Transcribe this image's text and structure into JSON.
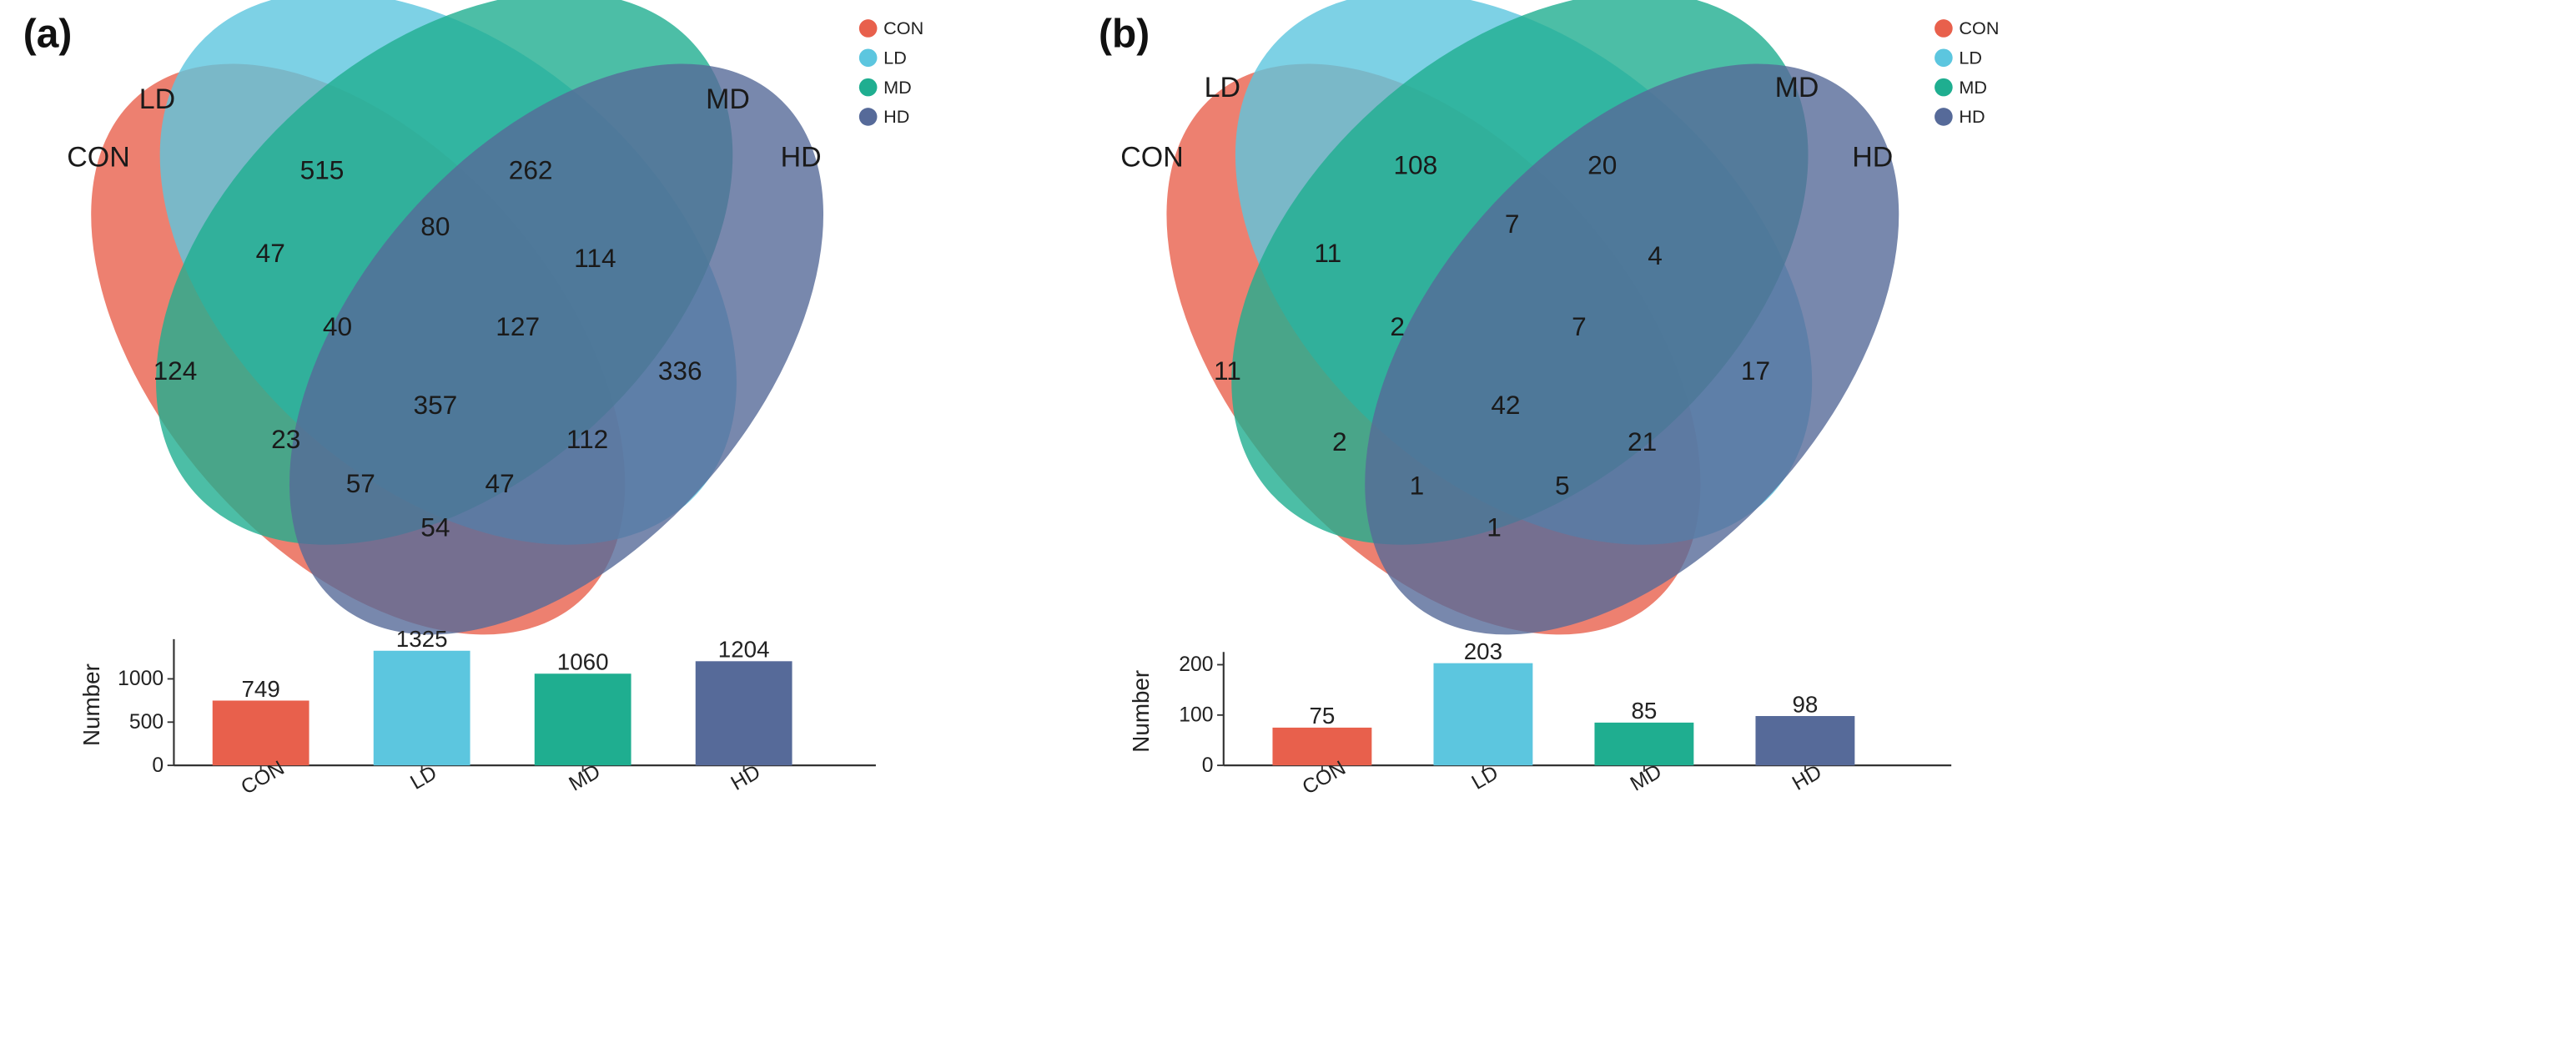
{
  "colors": {
    "CON": "#e8604c",
    "LD": "#5cc6df",
    "MD": "#1fae90",
    "HD": "#566a99"
  },
  "chart_data": [
    {
      "panel": "(a)",
      "type": "venn",
      "sets": [
        "CON",
        "LD",
        "MD",
        "HD"
      ],
      "legend": [
        "CON",
        "LD",
        "MD",
        "HD"
      ],
      "regions": [
        {
          "sets": [
            "LD"
          ],
          "value": 515
        },
        {
          "sets": [
            "MD"
          ],
          "value": 262
        },
        {
          "sets": [
            "CON"
          ],
          "value": 124
        },
        {
          "sets": [
            "HD"
          ],
          "value": 336
        },
        {
          "sets": [
            "CON",
            "LD"
          ],
          "value": 47
        },
        {
          "sets": [
            "LD",
            "MD"
          ],
          "value": 80
        },
        {
          "sets": [
            "MD",
            "HD"
          ],
          "value": 114
        },
        {
          "sets": [
            "CON",
            "LD",
            "MD"
          ],
          "value": 40
        },
        {
          "sets": [
            "LD",
            "MD",
            "HD"
          ],
          "value": 127
        },
        {
          "sets": [
            "CON",
            "LD",
            "MD",
            "HD"
          ],
          "value": 357
        },
        {
          "sets": [
            "CON",
            "MD"
          ],
          "value": 23
        },
        {
          "sets": [
            "LD",
            "HD"
          ],
          "value": 112
        },
        {
          "sets": [
            "CON",
            "MD",
            "HD"
          ],
          "value": 57
        },
        {
          "sets": [
            "CON",
            "LD",
            "HD"
          ],
          "value": 47
        },
        {
          "sets": [
            "CON",
            "HD"
          ],
          "value": 54
        }
      ],
      "bar": {
        "type": "bar",
        "ylabel": "Number",
        "categories": [
          "CON",
          "LD",
          "MD",
          "HD"
        ],
        "values": [
          749,
          1325,
          1060,
          1204
        ],
        "ylim": [
          0,
          1400
        ],
        "yticks": [
          0,
          500,
          1000
        ]
      }
    },
    {
      "panel": "(b)",
      "type": "venn",
      "sets": [
        "CON",
        "LD",
        "MD",
        "HD"
      ],
      "legend": [
        "CON",
        "LD",
        "MD",
        "HD"
      ],
      "regions": [
        {
          "sets": [
            "LD"
          ],
          "value": 108
        },
        {
          "sets": [
            "MD"
          ],
          "value": 20
        },
        {
          "sets": [
            "CON"
          ],
          "value": 11
        },
        {
          "sets": [
            "HD"
          ],
          "value": 17
        },
        {
          "sets": [
            "CON",
            "LD"
          ],
          "value": 11
        },
        {
          "sets": [
            "LD",
            "MD"
          ],
          "value": 7
        },
        {
          "sets": [
            "MD",
            "HD"
          ],
          "value": 4
        },
        {
          "sets": [
            "CON",
            "LD",
            "MD"
          ],
          "value": 2
        },
        {
          "sets": [
            "LD",
            "MD",
            "HD"
          ],
          "value": 7
        },
        {
          "sets": [
            "CON",
            "LD",
            "MD",
            "HD"
          ],
          "value": 42
        },
        {
          "sets": [
            "CON",
            "MD"
          ],
          "value": 2
        },
        {
          "sets": [
            "LD",
            "HD"
          ],
          "value": 21
        },
        {
          "sets": [
            "CON",
            "MD",
            "HD"
          ],
          "value": 1
        },
        {
          "sets": [
            "CON",
            "LD",
            "HD"
          ],
          "value": 5
        },
        {
          "sets": [
            "CON",
            "HD"
          ],
          "value": 1
        }
      ],
      "bar": {
        "type": "bar",
        "ylabel": "Number",
        "categories": [
          "CON",
          "LD",
          "MD",
          "HD"
        ],
        "values": [
          75,
          203,
          85,
          98
        ],
        "ylim": [
          0,
          215
        ],
        "yticks": [
          0,
          100,
          200
        ]
      }
    }
  ]
}
